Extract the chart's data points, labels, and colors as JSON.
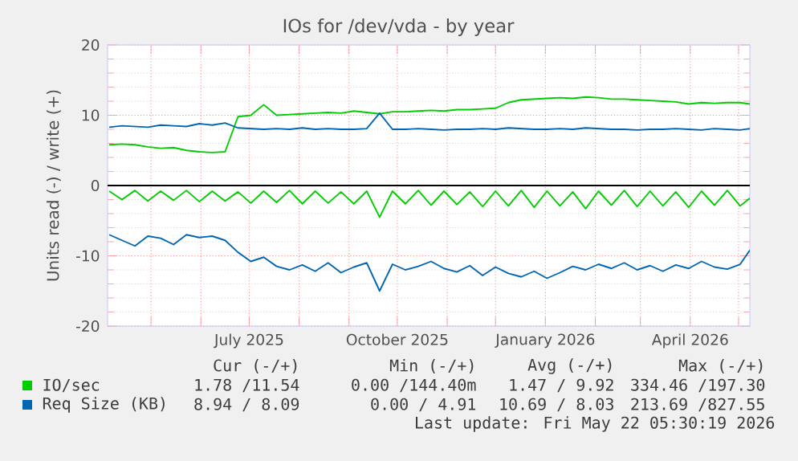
{
  "chart_data": {
    "type": "line",
    "title": "IOs for /dev/vda - by year",
    "ylabel": "Units read (-) / write (+)",
    "x": [
      "2025-04-05",
      "2025-04-13",
      "2025-04-21",
      "2025-04-29",
      "2025-05-07",
      "2025-05-15",
      "2025-05-23",
      "2025-05-31",
      "2025-06-08",
      "2025-06-16",
      "2025-06-24",
      "2025-07-02",
      "2025-07-10",
      "2025-07-18",
      "2025-07-26",
      "2025-08-03",
      "2025-08-11",
      "2025-08-19",
      "2025-08-27",
      "2025-09-04",
      "2025-09-12",
      "2025-09-20",
      "2025-09-28",
      "2025-10-06",
      "2025-10-14",
      "2025-10-22",
      "2025-10-30",
      "2025-11-07",
      "2025-11-15",
      "2025-11-23",
      "2025-12-01",
      "2025-12-09",
      "2025-12-17",
      "2025-12-25",
      "2026-01-02",
      "2026-01-10",
      "2026-01-18",
      "2026-01-26",
      "2026-02-03",
      "2026-02-11",
      "2026-02-19",
      "2026-02-27",
      "2026-03-07",
      "2026-03-15",
      "2026-03-23",
      "2026-03-31",
      "2026-04-08",
      "2026-04-16",
      "2026-04-24",
      "2026-05-02",
      "2026-05-08"
    ],
    "series": [
      {
        "name": "IO/sec",
        "color": "#00cc00",
        "values": [
          5.8,
          5.9,
          5.8,
          5.5,
          5.3,
          5.4,
          5.0,
          4.8,
          4.7,
          4.8,
          9.8,
          10.0,
          11.5,
          10.0,
          10.1,
          10.2,
          10.3,
          10.4,
          10.3,
          10.6,
          10.4,
          10.2,
          10.5,
          10.5,
          10.6,
          10.7,
          10.6,
          10.8,
          10.8,
          10.9,
          11.0,
          11.8,
          12.2,
          12.3,
          12.4,
          12.5,
          12.4,
          12.6,
          12.5,
          12.3,
          12.3,
          12.2,
          12.1,
          12.0,
          11.9,
          11.6,
          11.8,
          11.7,
          11.8,
          11.8,
          11.6
        ]
      },
      {
        "color": "#00cc00",
        "values": [
          -0.8,
          -2.0,
          -0.7,
          -2.2,
          -0.8,
          -2.1,
          -0.7,
          -2.3,
          -0.8,
          -2.2,
          -0.9,
          -2.5,
          -0.8,
          -2.4,
          -0.7,
          -2.6,
          -0.8,
          -2.5,
          -0.9,
          -2.6,
          -0.8,
          -4.5,
          -0.8,
          -2.6,
          -0.7,
          -2.8,
          -0.8,
          -2.7,
          -0.9,
          -3.0,
          -0.8,
          -2.9,
          -0.7,
          -3.1,
          -0.8,
          -2.9,
          -0.9,
          -3.3,
          -0.8,
          -2.8,
          -0.7,
          -3.0,
          -0.8,
          -2.9,
          -0.9,
          -3.1,
          -0.8,
          -2.8,
          -0.7,
          -2.9,
          -1.8
        ]
      },
      {
        "name": "Req Size (KB)",
        "color": "#0066b3",
        "values": [
          8.3,
          8.5,
          8.4,
          8.3,
          8.6,
          8.5,
          8.4,
          8.8,
          8.6,
          8.9,
          8.2,
          8.1,
          8.0,
          8.1,
          8.0,
          8.2,
          8.0,
          8.1,
          8.0,
          8.0,
          8.1,
          10.3,
          8.0,
          8.0,
          8.1,
          8.0,
          7.9,
          8.0,
          8.0,
          8.1,
          8.0,
          8.2,
          8.1,
          8.0,
          8.0,
          8.1,
          8.0,
          8.2,
          8.1,
          8.0,
          8.0,
          7.9,
          8.0,
          8.0,
          8.1,
          8.0,
          7.9,
          8.1,
          8.0,
          7.9,
          8.1
        ]
      },
      {
        "color": "#0066b3",
        "values": [
          -7.0,
          -7.8,
          -8.6,
          -7.2,
          -7.5,
          -8.4,
          -7.0,
          -7.4,
          -7.2,
          -7.8,
          -9.5,
          -10.8,
          -10.2,
          -11.5,
          -12.0,
          -11.3,
          -12.2,
          -11.0,
          -12.4,
          -11.6,
          -11.0,
          -15.0,
          -11.2,
          -12.0,
          -11.5,
          -10.8,
          -11.8,
          -12.3,
          -11.4,
          -12.8,
          -11.6,
          -12.5,
          -13.0,
          -12.2,
          -13.2,
          -12.4,
          -11.5,
          -12.0,
          -11.2,
          -11.8,
          -11.0,
          -12.0,
          -11.4,
          -12.2,
          -11.3,
          -11.8,
          -10.8,
          -11.6,
          -11.9,
          -11.2,
          -9.2
        ]
      }
    ],
    "xlim": [
      "2025-04-04",
      "2026-05-08"
    ],
    "xticks": [
      {
        "value": "2025-05-01",
        "label": null
      },
      {
        "value": "2025-06-01",
        "label": null
      },
      {
        "value": "2025-07-01",
        "label": "July 2025"
      },
      {
        "value": "2025-08-01",
        "label": null
      },
      {
        "value": "2025-09-01",
        "label": null
      },
      {
        "value": "2025-10-01",
        "label": "October 2025"
      },
      {
        "value": "2025-11-01",
        "label": null
      },
      {
        "value": "2025-12-01",
        "label": null
      },
      {
        "value": "2026-01-01",
        "label": "January 2026"
      },
      {
        "value": "2026-02-01",
        "label": null
      },
      {
        "value": "2026-03-01",
        "label": null
      },
      {
        "value": "2026-04-01",
        "label": "April 2026"
      },
      {
        "value": "2026-05-01",
        "label": null
      }
    ],
    "ylim": [
      -20,
      20
    ],
    "yticks": [
      -20,
      -10,
      0,
      10,
      20
    ],
    "ref_lines": [
      {
        "axis": "y",
        "value": 0,
        "color": "#000000"
      }
    ],
    "grid": true,
    "legend": "bottom",
    "line_style": "solid",
    "marker": "none",
    "annotations": [
      "Cur (-/+)",
      "Min (-/+)",
      "Avg (-/+)",
      "Max (-/+)",
      "1.78 /11.54",
      "0.00 /144.40m",
      "1.47 / 9.92",
      "334.46 /197.30",
      "8.94 / 8.09",
      "0.00 / 4.91",
      "10.69 / 8.03",
      "213.69 /827.55",
      "Last update: Fri May 22 05:30:19 2026"
    ]
  }
}
